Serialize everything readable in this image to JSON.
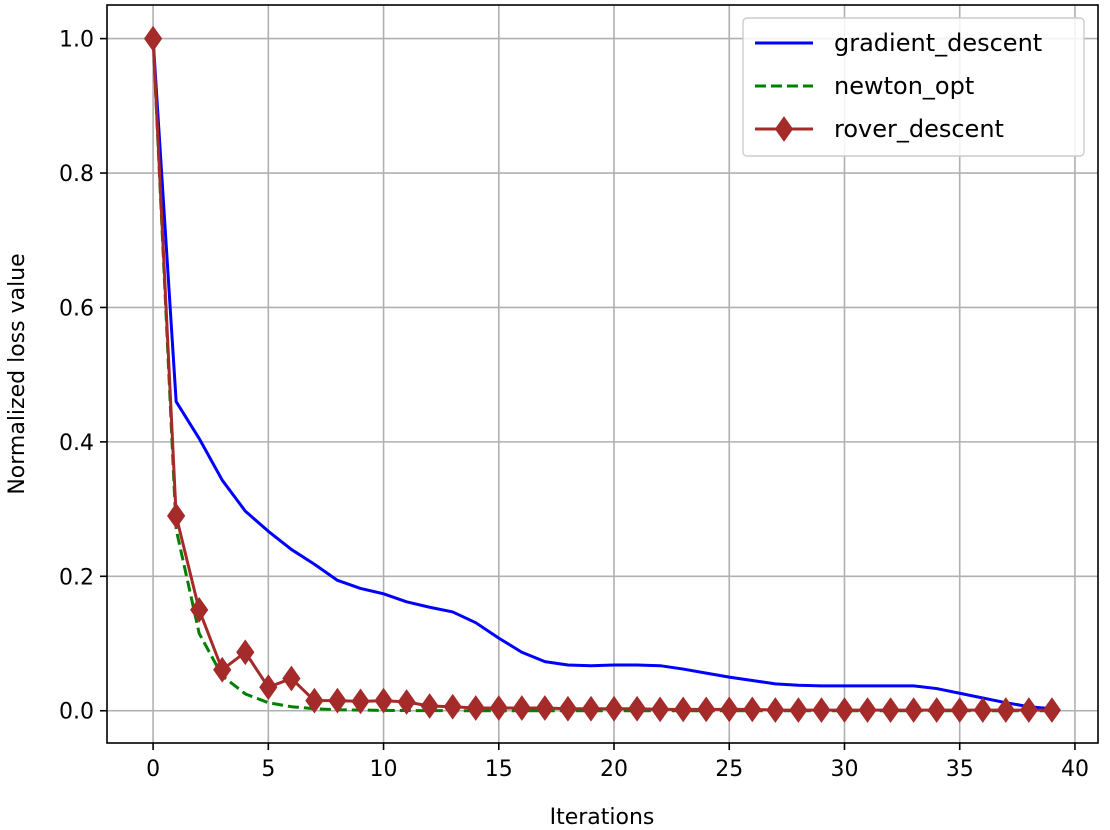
{
  "chart_data": {
    "type": "line",
    "title": "",
    "xlabel": "Iterations",
    "ylabel": "Normalized loss value",
    "xlim": [
      -2,
      41
    ],
    "ylim": [
      -0.048,
      1.05
    ],
    "xticks": [
      0,
      5,
      10,
      15,
      20,
      25,
      30,
      35,
      40
    ],
    "yticks": [
      0.0,
      0.2,
      0.4,
      0.6,
      0.8,
      1.0
    ],
    "xtick_labels": [
      "0",
      "5",
      "10",
      "15",
      "20",
      "25",
      "30",
      "35",
      "40"
    ],
    "ytick_labels": [
      "0.0",
      "0.2",
      "0.4",
      "0.6",
      "0.8",
      "1.0"
    ],
    "grid": true,
    "legend_position": "top-right",
    "series": [
      {
        "name": "gradient_descent",
        "color": "#0000ff",
        "style": "solid",
        "marker": "none",
        "x": [
          0,
          1,
          2,
          3,
          4,
          5,
          6,
          7,
          8,
          9,
          10,
          11,
          12,
          13,
          14,
          15,
          16,
          17,
          18,
          19,
          20,
          21,
          22,
          23,
          24,
          25,
          26,
          27,
          28,
          29,
          30,
          31,
          32,
          33,
          34,
          35,
          36,
          37,
          38,
          39
        ],
        "values": [
          1.0,
          0.46,
          0.405,
          0.343,
          0.297,
          0.267,
          0.24,
          0.218,
          0.194,
          0.182,
          0.174,
          0.162,
          0.154,
          0.147,
          0.131,
          0.108,
          0.087,
          0.073,
          0.068,
          0.067,
          0.068,
          0.068,
          0.067,
          0.062,
          0.056,
          0.05,
          0.045,
          0.04,
          0.038,
          0.037,
          0.037,
          0.037,
          0.037,
          0.037,
          0.033,
          0.026,
          0.019,
          0.012,
          0.006,
          0.003
        ]
      },
      {
        "name": "newton_opt",
        "color": "#008000",
        "style": "dashed",
        "marker": "none",
        "x": [
          0,
          1,
          2,
          3,
          4,
          5,
          6,
          7,
          8,
          9,
          10,
          11,
          12,
          13,
          14,
          15,
          16,
          17,
          18,
          19,
          20,
          21,
          22,
          23,
          24,
          25,
          26,
          27,
          28,
          29,
          30,
          31,
          32,
          33,
          34,
          35,
          36,
          37,
          38,
          39
        ],
        "values": [
          1.0,
          0.27,
          0.115,
          0.052,
          0.025,
          0.012,
          0.006,
          0.003,
          0.0015,
          0.001,
          0.0005,
          0.0003,
          0.0002,
          0.0001,
          0,
          0,
          0,
          0,
          0,
          0,
          0,
          0,
          0,
          0,
          0,
          0,
          0,
          0,
          0,
          0,
          0,
          0,
          0,
          0,
          0,
          0,
          0,
          0,
          0,
          0
        ]
      },
      {
        "name": "rover_descent",
        "color": "#a52a2a",
        "style": "solid",
        "marker": "diamond",
        "x": [
          0,
          1,
          2,
          3,
          4,
          5,
          6,
          7,
          8,
          9,
          10,
          11,
          12,
          13,
          14,
          15,
          16,
          17,
          18,
          19,
          20,
          21,
          22,
          23,
          24,
          25,
          26,
          27,
          28,
          29,
          30,
          31,
          32,
          33,
          34,
          35,
          36,
          37,
          38,
          39
        ],
        "values": [
          1.0,
          0.29,
          0.15,
          0.061,
          0.087,
          0.035,
          0.048,
          0.015,
          0.015,
          0.014,
          0.015,
          0.013,
          0.007,
          0.006,
          0.004,
          0.004,
          0.004,
          0.004,
          0.003,
          0.003,
          0.003,
          0.003,
          0.002,
          0.002,
          0.002,
          0.002,
          0.002,
          0.001,
          0.001,
          0.001,
          0.001,
          0.001,
          0.001,
          0.001,
          0.001,
          0.001,
          0.001,
          0.001,
          0.001,
          0.001
        ]
      }
    ]
  }
}
